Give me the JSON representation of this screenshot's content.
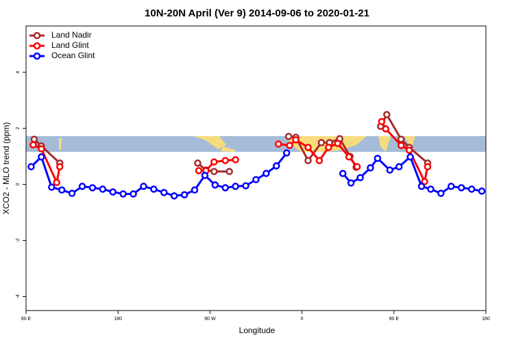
{
  "chart_data": {
    "type": "line",
    "title": "10N-20N April (Ver 9)   2014-09-06 to 2020-01-21",
    "x_label": "Longitude",
    "y_label": "XCO2 - MLO trend (ppm)",
    "xlim": [
      90,
      540
    ],
    "xticks": [
      {
        "value": 90,
        "label": "90 E"
      },
      180,
      {
        "value": 270,
        "label": "90 W"
      },
      {
        "value": 360,
        "label": "0"
      },
      {
        "value": 450,
        "label": "90 E"
      },
      {
        "value": 540,
        "label": "180"
      }
    ],
    "ylim": [
      -4.5,
      5.65
    ],
    "yticks": [
      -4,
      -2,
      0,
      2,
      4
    ],
    "legend": "top-left",
    "series": [
      {
        "name": "Land Nadir",
        "color": "#a52a2a",
        "x": [
          98,
          105,
          123,
          null,
          258,
          266,
          274,
          289,
          null,
          347,
          354,
          366,
          379,
          387,
          397,
          407,
          413,
          null,
          437,
          443,
          457,
          465,
          483
        ],
        "values": [
          1.61,
          1.37,
          0.76,
          null,
          0.76,
          0.51,
          0.46,
          0.46,
          null,
          1.71,
          1.68,
          0.85,
          1.49,
          1.49,
          1.63,
          1.0,
          0.61,
          null,
          2.07,
          2.49,
          1.61,
          1.32,
          0.76
        ]
      },
      {
        "name": "Land Glint",
        "color": "#ff0000",
        "x": [
          97,
          105,
          120,
          123,
          null,
          259,
          266,
          274,
          285,
          295,
          null,
          337,
          348,
          354,
          366,
          377,
          386,
          395,
          406,
          414,
          null,
          438,
          442,
          457,
          465,
          480,
          483
        ],
        "values": [
          1.41,
          1.27,
          0.07,
          0.63,
          null,
          0.49,
          0.49,
          0.8,
          0.85,
          0.88,
          null,
          1.44,
          1.39,
          1.59,
          1.32,
          0.85,
          1.32,
          1.46,
          0.98,
          0.63,
          null,
          2.24,
          1.98,
          1.39,
          1.22,
          0.1,
          0.63
        ]
      },
      {
        "name": "Ocean Glint",
        "color": "#0000ff",
        "x": [
          95,
          105,
          115,
          125,
          135,
          145,
          155,
          165,
          175,
          185,
          195,
          205,
          215,
          225,
          235,
          245,
          255,
          265,
          275,
          285,
          295,
          305,
          315,
          325,
          335,
          345,
          null,
          400,
          408,
          417,
          427,
          434,
          446,
          455,
          466,
          477,
          486,
          496,
          506,
          516,
          526,
          536
        ],
        "values": [
          0.63,
          0.98,
          -0.1,
          -0.2,
          -0.32,
          -0.07,
          -0.12,
          -0.17,
          -0.27,
          -0.34,
          -0.34,
          -0.07,
          -0.17,
          -0.29,
          -0.41,
          -0.37,
          -0.2,
          0.32,
          -0.02,
          -0.12,
          -0.07,
          -0.05,
          0.17,
          0.39,
          0.66,
          1.12,
          null,
          0.39,
          0.05,
          0.24,
          0.59,
          0.93,
          0.51,
          0.63,
          0.98,
          -0.07,
          -0.17,
          -0.32,
          -0.07,
          -0.12,
          -0.17,
          -0.24
        ]
      }
    ]
  }
}
